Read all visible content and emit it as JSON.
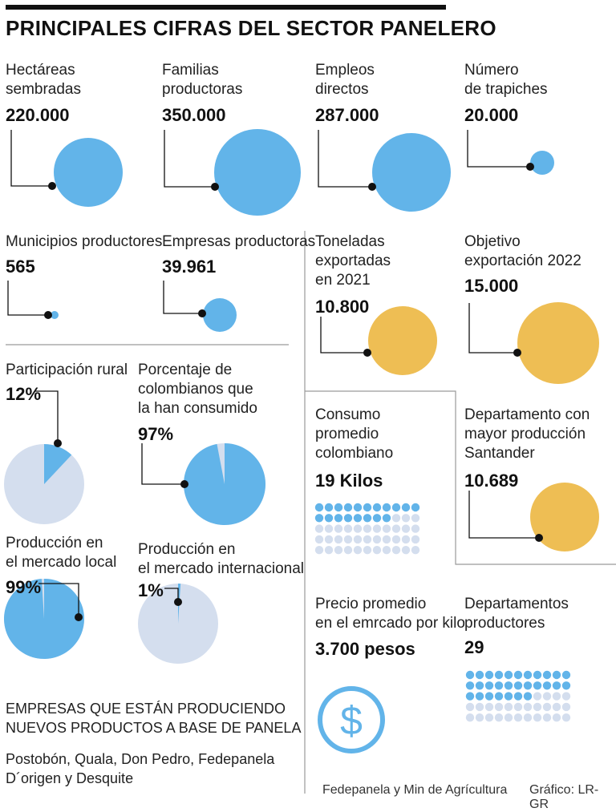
{
  "title": "PRINCIPALES CIFRAS DEL SECTOR PANELERO",
  "colors": {
    "blue": "#62b4e9",
    "light_blue": "#d4deee",
    "gold": "#eebe54",
    "dark": "#111111",
    "grid_line": "#9a9a9a"
  },
  "stats": [
    {
      "label": "Hectáreas\nsembradas",
      "value": "220.000"
    },
    {
      "label": "Familias\nproductoras",
      "value": "350.000"
    },
    {
      "label": "Empleos\ndirectos",
      "value": "287.000"
    },
    {
      "label": "Número\nde trapiches",
      "value": "20.000"
    },
    {
      "label": "Municipios productores",
      "value": "565"
    },
    {
      "label": "Empresas productoras",
      "value": "39.961"
    },
    {
      "label": "Toneladas\nexportadas\nen 2021",
      "value": "10.800"
    },
    {
      "label": "Objetivo\nexportación 2022",
      "value": "15.000"
    }
  ],
  "pies": [
    {
      "label": "Participación rural",
      "value": "12%",
      "percent": 12
    },
    {
      "label": "Porcentaje de\ncolombianos que\nla han consumido",
      "value": "97%",
      "percent": 97
    },
    {
      "label": "Producción en\nel mercado local",
      "value": "99%",
      "percent": 99
    },
    {
      "label": "Producción en\nel mercado internacional",
      "value": "1%",
      "percent": 1
    }
  ],
  "consumo": {
    "label": "Consumo\npromedio\ncolombiano",
    "value": "19 Kilos",
    "filled": 19,
    "total": 55
  },
  "departamento": {
    "label": "Departamento con\nmayor producción\nSantander",
    "value": "10.689"
  },
  "precio": {
    "label": "Precio promedio\nen el emrcado por kilo",
    "value": "3.700 pesos",
    "icon": "dollar-icon"
  },
  "departamentos_productores": {
    "label": "Departamentos\nproductores",
    "value": "29",
    "filled": 29,
    "total": 55
  },
  "empresas": {
    "heading": "EMPRESAS QUE ESTÁN PRODUCIENDO\nNUEVOS PRODUCTOS A BASE DE PANELA",
    "list": "Postobón, Quala, Don Pedro, Fedepanela\nD´origen y Desquite"
  },
  "source": "Fedepanela y Min de Agrícultura",
  "credit": "Gráfico: LR-GR"
}
